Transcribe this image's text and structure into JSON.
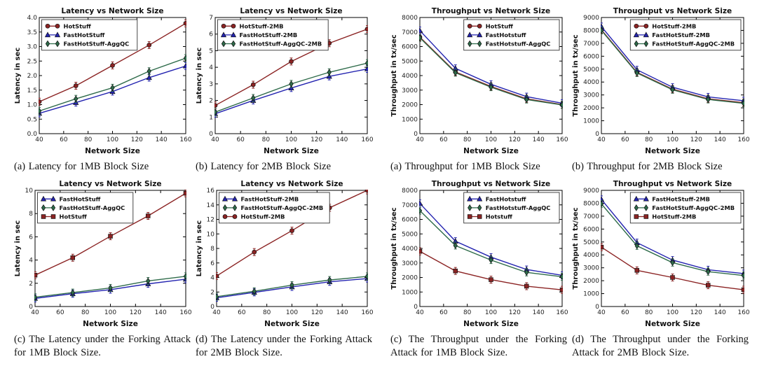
{
  "colors": {
    "hotstuff": "#8b2323",
    "fasthotstuff": "#2323b0",
    "aggqc": "#2e6b4a",
    "axis": "#000000",
    "tick_label": "#222222",
    "background": "#ffffff"
  },
  "figures": [
    {
      "name": "latency-1mb",
      "caption": "(a) Latency for 1MB Block Size",
      "chart": {
        "type": "line",
        "title": "Latency vs Network Size",
        "xlabel": "Network Size",
        "ylabel": "Latency in sec",
        "x": [
          40,
          70,
          100,
          130,
          160
        ],
        "xlim": [
          40,
          160
        ],
        "xticks": [
          40,
          60,
          80,
          100,
          120,
          140,
          160
        ],
        "ylim": [
          0,
          4
        ],
        "yticks": [
          "0.0",
          "0.5",
          "1.0",
          "1.5",
          "2.0",
          "2.5",
          "3.0",
          "3.5",
          "4.0"
        ],
        "grid": false,
        "legend_position": "left",
        "series": [
          {
            "name": "HotStuff",
            "color": "#8b2323",
            "marker": "circle",
            "values": [
              1.1,
              1.65,
              2.35,
              3.05,
              3.8
            ]
          },
          {
            "name": "FastHotStuff",
            "color": "#2323b0",
            "marker": "triangle",
            "values": [
              0.7,
              1.07,
              1.45,
              1.93,
              2.33
            ]
          },
          {
            "name": "FastHotStuff-AggQC",
            "color": "#2e6b4a",
            "marker": "diamond",
            "values": [
              0.78,
              1.2,
              1.58,
              2.15,
              2.6
            ]
          }
        ]
      }
    },
    {
      "name": "latency-2mb",
      "caption": "(b) Latency for 2MB Block Size",
      "chart": {
        "type": "line",
        "title": "Latency vs Network Size",
        "xlabel": "Network Size",
        "ylabel": "Latency in sec",
        "x": [
          40,
          70,
          100,
          130,
          160
        ],
        "xlim": [
          40,
          160
        ],
        "xticks": [
          40,
          60,
          80,
          100,
          120,
          140,
          160
        ],
        "ylim": [
          0,
          7
        ],
        "yticks": [
          "0",
          "1",
          "2",
          "3",
          "4",
          "5",
          "6",
          "7"
        ],
        "grid": false,
        "legend_position": "left",
        "series": [
          {
            "name": "HotStuff-2MB",
            "color": "#8b2323",
            "marker": "circle",
            "values": [
              1.7,
              2.95,
              4.35,
              5.45,
              6.3
            ]
          },
          {
            "name": "FastHotStuff-2MB",
            "color": "#2323b0",
            "marker": "triangle",
            "values": [
              1.2,
              2.0,
              2.75,
              3.45,
              3.9
            ]
          },
          {
            "name": "FastHotStuff-AggQC-2MB",
            "color": "#2e6b4a",
            "marker": "diamond",
            "values": [
              1.3,
              2.15,
              3.0,
              3.7,
              4.25
            ]
          }
        ]
      }
    },
    {
      "name": "throughput-1mb",
      "caption": "(a) Throughput for 1MB Block Size",
      "chart": {
        "type": "line",
        "title": "Throughput vs Network Size",
        "xlabel": "Network Size",
        "ylabel": "Throughput in tx/sec",
        "x": [
          40,
          70,
          100,
          130,
          160
        ],
        "xlim": [
          40,
          160
        ],
        "xticks": [
          40,
          60,
          80,
          100,
          120,
          140,
          160
        ],
        "ylim": [
          0,
          8000
        ],
        "yticks": [
          "0",
          "1000",
          "2000",
          "3000",
          "4000",
          "5000",
          "6000",
          "7000",
          "8000"
        ],
        "grid": false,
        "legend_position": "right",
        "series": [
          {
            "name": "HotStuff",
            "color": "#8b2323",
            "marker": "circle",
            "values": [
              6650,
              4250,
              3250,
              2400,
              2000
            ]
          },
          {
            "name": "FastHotstuff",
            "color": "#2323b0",
            "marker": "triangle",
            "values": [
              7100,
              4500,
              3400,
              2550,
              2100
            ]
          },
          {
            "name": "FastHotstuff-AggQC",
            "color": "#2e6b4a",
            "marker": "diamond",
            "values": [
              6600,
              4200,
              3200,
              2350,
              1980
            ]
          }
        ]
      }
    },
    {
      "name": "throughput-2mb",
      "caption": "(b) Throughput for 2MB Block Size",
      "chart": {
        "type": "line",
        "title": "Throughput vs Network Size",
        "xlabel": "Network Size",
        "ylabel": "Throughput in tx/sec",
        "x": [
          40,
          70,
          100,
          130,
          160
        ],
        "xlim": [
          40,
          160
        ],
        "xticks": [
          40,
          60,
          80,
          100,
          120,
          140,
          160
        ],
        "ylim": [
          0,
          9000
        ],
        "yticks": [
          "0",
          "1000",
          "2000",
          "3000",
          "4000",
          "5000",
          "6000",
          "7000",
          "8000",
          "9000"
        ],
        "grid": false,
        "legend_position": "right",
        "series": [
          {
            "name": "HotStuff-2MB",
            "color": "#8b2323",
            "marker": "circle",
            "values": [
              8050,
              4750,
              3450,
              2700,
              2400
            ]
          },
          {
            "name": "FastHotStuff-2MB",
            "color": "#2323b0",
            "marker": "triangle",
            "values": [
              8300,
              4950,
              3600,
              2850,
              2550
            ]
          },
          {
            "name": "FastHotStuff-AggQC-2MB",
            "color": "#2e6b4a",
            "marker": "diamond",
            "values": [
              8000,
              4700,
              3400,
              2650,
              2350
            ]
          }
        ]
      }
    },
    {
      "name": "latency-forking-1mb",
      "caption": "(c) The Latency under the Forking Attack for 1MB Block Size.",
      "chart": {
        "type": "line",
        "title": "Latency vs Network Size",
        "xlabel": "Network Size",
        "ylabel": "Latency in sec",
        "x": [
          40,
          70,
          100,
          130,
          160
        ],
        "xlim": [
          40,
          160
        ],
        "xticks": [
          40,
          60,
          80,
          100,
          120,
          140,
          160
        ],
        "ylim": [
          0,
          10
        ],
        "yticks": [
          "0",
          "2",
          "4",
          "6",
          "8",
          "10"
        ],
        "grid": false,
        "legend_position": "left",
        "series": [
          {
            "name": "FastHotStuff",
            "color": "#2323b0",
            "marker": "triangle",
            "values": [
              0.7,
              1.1,
              1.45,
              1.95,
              2.35
            ]
          },
          {
            "name": "FastHotStuff-AggQC",
            "color": "#2e6b4a",
            "marker": "diamond",
            "values": [
              0.8,
              1.2,
              1.6,
              2.2,
              2.6
            ]
          },
          {
            "name": "HotStuff",
            "color": "#8b2323",
            "marker": "square",
            "values": [
              2.7,
              4.2,
              6.05,
              7.8,
              9.75
            ]
          }
        ]
      }
    },
    {
      "name": "latency-forking-2mb",
      "caption": "(d) The Latency under the Forking Attack for 2MB Block Size.",
      "chart": {
        "type": "line",
        "title": "Latency vs Network Size",
        "xlabel": "Network Size",
        "ylabel": "Latency in sec",
        "x": [
          40,
          70,
          100,
          130,
          160
        ],
        "xlim": [
          40,
          160
        ],
        "xticks": [
          40,
          60,
          80,
          100,
          120,
          140,
          160
        ],
        "ylim": [
          0,
          16
        ],
        "yticks": [
          "0",
          "2",
          "4",
          "6",
          "8",
          "10",
          "12",
          "14",
          "16"
        ],
        "grid": false,
        "legend_position": "left",
        "series": [
          {
            "name": "FastHotStuff-2MB",
            "color": "#2323b0",
            "marker": "triangle",
            "values": [
              1.2,
              1.95,
              2.7,
              3.4,
              3.85
            ]
          },
          {
            "name": "FastHotStuff-AggQC-2MB",
            "color": "#2e6b4a",
            "marker": "diamond",
            "values": [
              1.35,
              2.1,
              2.95,
              3.65,
              4.15
            ]
          },
          {
            "name": "HotStuff-2MB",
            "color": "#8b2323",
            "marker": "circle",
            "values": [
              4.2,
              7.5,
              10.45,
              13.6,
              16.0
            ]
          }
        ]
      }
    },
    {
      "name": "throughput-forking-1mb",
      "caption": "(c) The Throughput under the Forking Attack for 1MB Block Size.",
      "chart": {
        "type": "line",
        "title": "Throughput vs Network Size",
        "xlabel": "Network Size",
        "ylabel": "Throughput in tx/sec",
        "x": [
          40,
          70,
          100,
          130,
          160
        ],
        "xlim": [
          40,
          160
        ],
        "xticks": [
          40,
          60,
          80,
          100,
          120,
          140,
          160
        ],
        "ylim": [
          0,
          8000
        ],
        "yticks": [
          "0",
          "1000",
          "2000",
          "3000",
          "4000",
          "5000",
          "6000",
          "7000",
          "8000"
        ],
        "grid": false,
        "legend_position": "right",
        "series": [
          {
            "name": "FastHotstuff",
            "color": "#2323b0",
            "marker": "triangle",
            "values": [
              7100,
              4500,
              3400,
              2550,
              2150
            ]
          },
          {
            "name": "FastHotstuff-AggQC",
            "color": "#2e6b4a",
            "marker": "diamond",
            "values": [
              6600,
              4200,
              3200,
              2350,
              2050
            ]
          },
          {
            "name": "Hotstuff",
            "color": "#8b2323",
            "marker": "square",
            "values": [
              3800,
              2450,
              1850,
              1400,
              1150
            ]
          }
        ]
      }
    },
    {
      "name": "throughput-forking-2mb",
      "caption": "(d) The Throughput under the Forking Attack for 2MB Block Size.",
      "chart": {
        "type": "line",
        "title": "Throughput vs Network Size",
        "xlabel": "Network Size",
        "ylabel": "Throughput in tx/sec",
        "x": [
          40,
          70,
          100,
          130,
          160
        ],
        "xlim": [
          40,
          160
        ],
        "xticks": [
          40,
          60,
          80,
          100,
          120,
          140,
          160
        ],
        "ylim": [
          0,
          9000
        ],
        "yticks": [
          "0",
          "1000",
          "2000",
          "3000",
          "4000",
          "5000",
          "6000",
          "7000",
          "8000",
          "9000"
        ],
        "grid": false,
        "legend_position": "right",
        "series": [
          {
            "name": "FastHotStuff-2MB",
            "color": "#2323b0",
            "marker": "triangle",
            "values": [
              8300,
              4950,
              3600,
              2850,
              2550
            ]
          },
          {
            "name": "FastHotStuff-AggQC-2MB",
            "color": "#2e6b4a",
            "marker": "diamond",
            "values": [
              7950,
              4700,
              3400,
              2700,
              2400
            ]
          },
          {
            "name": "HotStuff-2MB",
            "color": "#8b2323",
            "marker": "square",
            "values": [
              4600,
              2800,
              2250,
              1650,
              1300
            ]
          }
        ]
      }
    }
  ],
  "chart_data": [
    {
      "ref": "figures.0.chart"
    },
    {
      "ref": "figures.1.chart"
    },
    {
      "ref": "figures.2.chart"
    },
    {
      "ref": "figures.3.chart"
    },
    {
      "ref": "figures.4.chart"
    },
    {
      "ref": "figures.5.chart"
    },
    {
      "ref": "figures.6.chart"
    },
    {
      "ref": "figures.7.chart"
    }
  ]
}
